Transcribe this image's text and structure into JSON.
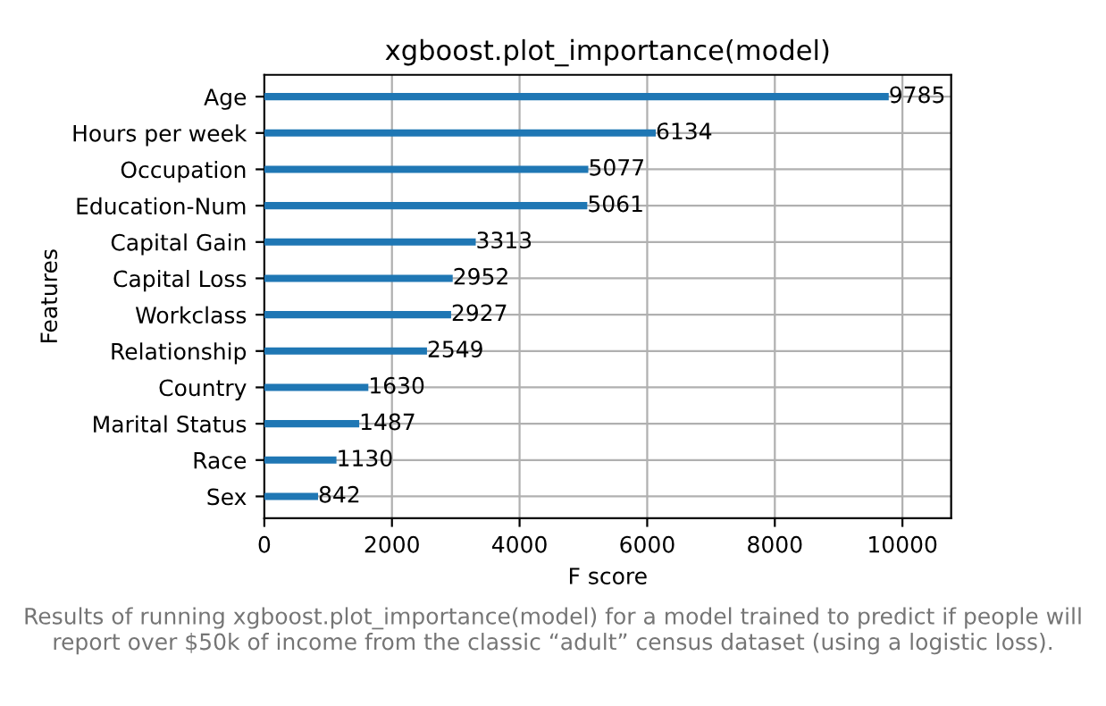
{
  "chart_data": {
    "type": "bar",
    "orientation": "horizontal",
    "title": "xgboost.plot_importance(model)",
    "xlabel": "F score",
    "ylabel": "Features",
    "categories": [
      "Age",
      "Hours per week",
      "Occupation",
      "Education-Num",
      "Capital Gain",
      "Capital Loss",
      "Workclass",
      "Relationship",
      "Country",
      "Marital Status",
      "Race",
      "Sex"
    ],
    "values": [
      9785,
      6134,
      5077,
      5061,
      3313,
      2952,
      2927,
      2549,
      1630,
      1487,
      1130,
      842
    ],
    "color": "#1f77b4",
    "data_labels": true,
    "xlim": [
      0,
      10763.5
    ],
    "xticks": [
      0,
      2000,
      4000,
      6000,
      8000,
      10000
    ],
    "grid": true,
    "annotations": [
      "Results of running xgboost.plot_importance(model) for a model trained to predict if people will report over $50k of income from the classic “adult” census dataset (using a logistic loss)."
    ]
  }
}
